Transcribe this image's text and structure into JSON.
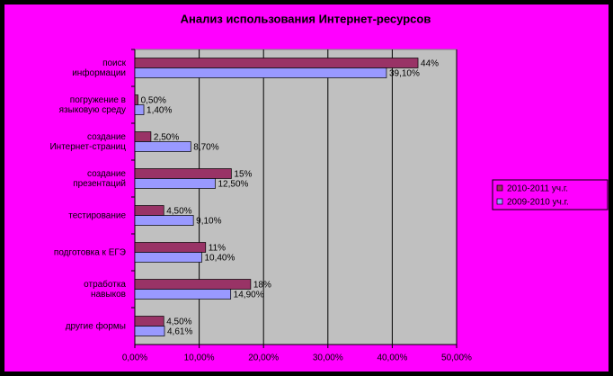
{
  "chart_data": {
    "type": "bar",
    "orientation": "horizontal",
    "title": "Анализ использования Интернет-ресурсов",
    "categories": [
      "поиск\nинформации",
      "погружение в\nязыковую среду",
      "создание\nИнтернет-страниц",
      "создание\nпрезентаций",
      "тестирование",
      "подготовка к ЕГЭ",
      "отработка\nнавыков",
      "другие формы"
    ],
    "series": [
      {
        "name": "2010-2011 уч.г.",
        "color": "#993366",
        "values": [
          44,
          0.5,
          2.5,
          15,
          4.5,
          11,
          18,
          4.5
        ],
        "value_labels": [
          "44%",
          "0,50%",
          "2,50%",
          "15%",
          "4,50%",
          "11%",
          "18%",
          "4,50%"
        ]
      },
      {
        "name": "2009-2010 уч.г.",
        "color": "#9999ff",
        "values": [
          39.1,
          1.4,
          8.7,
          12.5,
          9.1,
          10.4,
          14.9,
          4.61
        ],
        "value_labels": [
          "39,10%",
          "1,40%",
          "8,70%",
          "12,50%",
          "9,10%",
          "10,40%",
          "14,90%",
          "4,61%"
        ]
      }
    ],
    "xlim": [
      0,
      50
    ],
    "xticks": [
      {
        "value": 0,
        "label": "0,00%"
      },
      {
        "value": 10,
        "label": "10,00%"
      },
      {
        "value": 20,
        "label": "20,00%"
      },
      {
        "value": 30,
        "label": "30,00%"
      },
      {
        "value": 40,
        "label": "40,00%"
      },
      {
        "value": 50,
        "label": "50,00%"
      }
    ],
    "grid": true,
    "legend": "right"
  }
}
